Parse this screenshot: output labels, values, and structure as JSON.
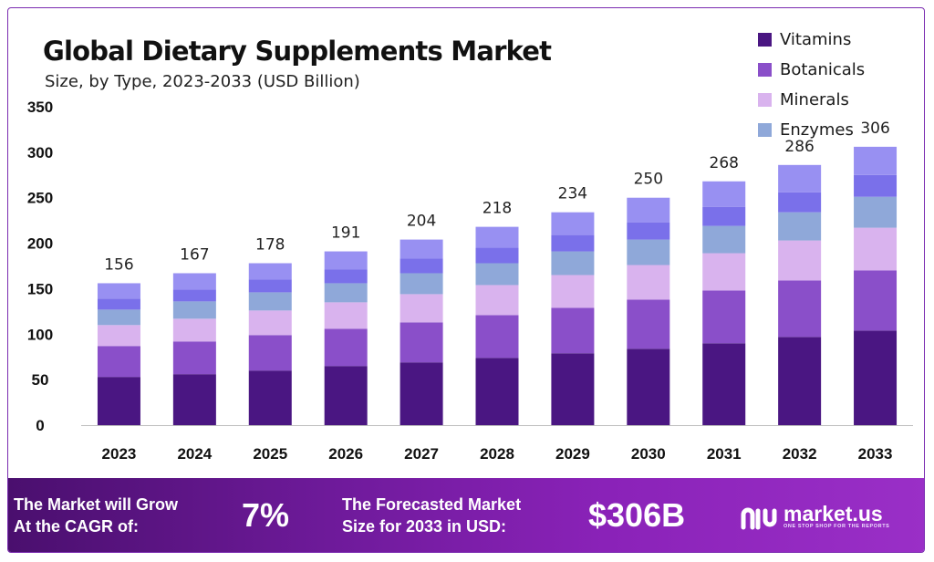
{
  "colors": {
    "vitamins": "#4a1682",
    "botanicals": "#8a4fc9",
    "minerals": "#d9b3ee",
    "enzymes": "#8fa8d9",
    "top": "#8a80f0",
    "banner": "#6e1a9a"
  },
  "chart_data": {
    "type": "bar",
    "stacked": true,
    "title": "Global Dietary Supplements Market",
    "subtitle": "Size, by Type, 2023-2033 (USD Billion)",
    "categories": [
      "2023",
      "2024",
      "2025",
      "2026",
      "2027",
      "2028",
      "2029",
      "2030",
      "2031",
      "2032",
      "2033"
    ],
    "totals": [
      156,
      167,
      178,
      191,
      204,
      218,
      234,
      250,
      268,
      286,
      306
    ],
    "series": [
      {
        "name": "Vitamins",
        "color": "#4a1682",
        "values": [
          53,
          56,
          60,
          65,
          69,
          74,
          79,
          84,
          90,
          97,
          104
        ]
      },
      {
        "name": "Botanicals",
        "color": "#8a4fc9",
        "values": [
          34,
          36,
          39,
          41,
          44,
          47,
          50,
          54,
          58,
          62,
          66
        ]
      },
      {
        "name": "Minerals",
        "color": "#d9b3ee",
        "values": [
          23,
          25,
          27,
          29,
          31,
          33,
          36,
          38,
          41,
          44,
          47
        ]
      },
      {
        "name": "Enzymes",
        "color": "#8fa8d9",
        "values": [
          17,
          19,
          20,
          21,
          23,
          24,
          26,
          28,
          30,
          31,
          34
        ]
      },
      {
        "name": "",
        "color": "#7a70ea",
        "values": [
          12,
          13,
          14,
          15,
          16,
          17,
          18,
          19,
          21,
          22,
          24
        ]
      },
      {
        "name": "",
        "color": "#9890f2",
        "values": [
          17,
          18,
          18,
          20,
          21,
          23,
          25,
          27,
          28,
          30,
          31
        ]
      }
    ],
    "legend": [
      "Vitamins",
      "Botanicals",
      "Minerals",
      "Enzymes"
    ],
    "yticks": [
      0,
      50,
      100,
      150,
      200,
      250,
      300,
      350
    ],
    "ylim": [
      0,
      350
    ],
    "xlabel": "",
    "ylabel": "",
    "grid": false,
    "legend_position": "top-right"
  },
  "banner": {
    "cagr_line1": "The Market will Grow",
    "cagr_line2": "At the CAGR of:",
    "cagr_value": "7%",
    "forecast_line1": "The Forecasted Market",
    "forecast_line2": "Size for 2033 in USD:",
    "forecast_value": "$306B",
    "logo_name": "market.us",
    "logo_tagline": "ONE STOP SHOP FOR THE REPORTS"
  }
}
